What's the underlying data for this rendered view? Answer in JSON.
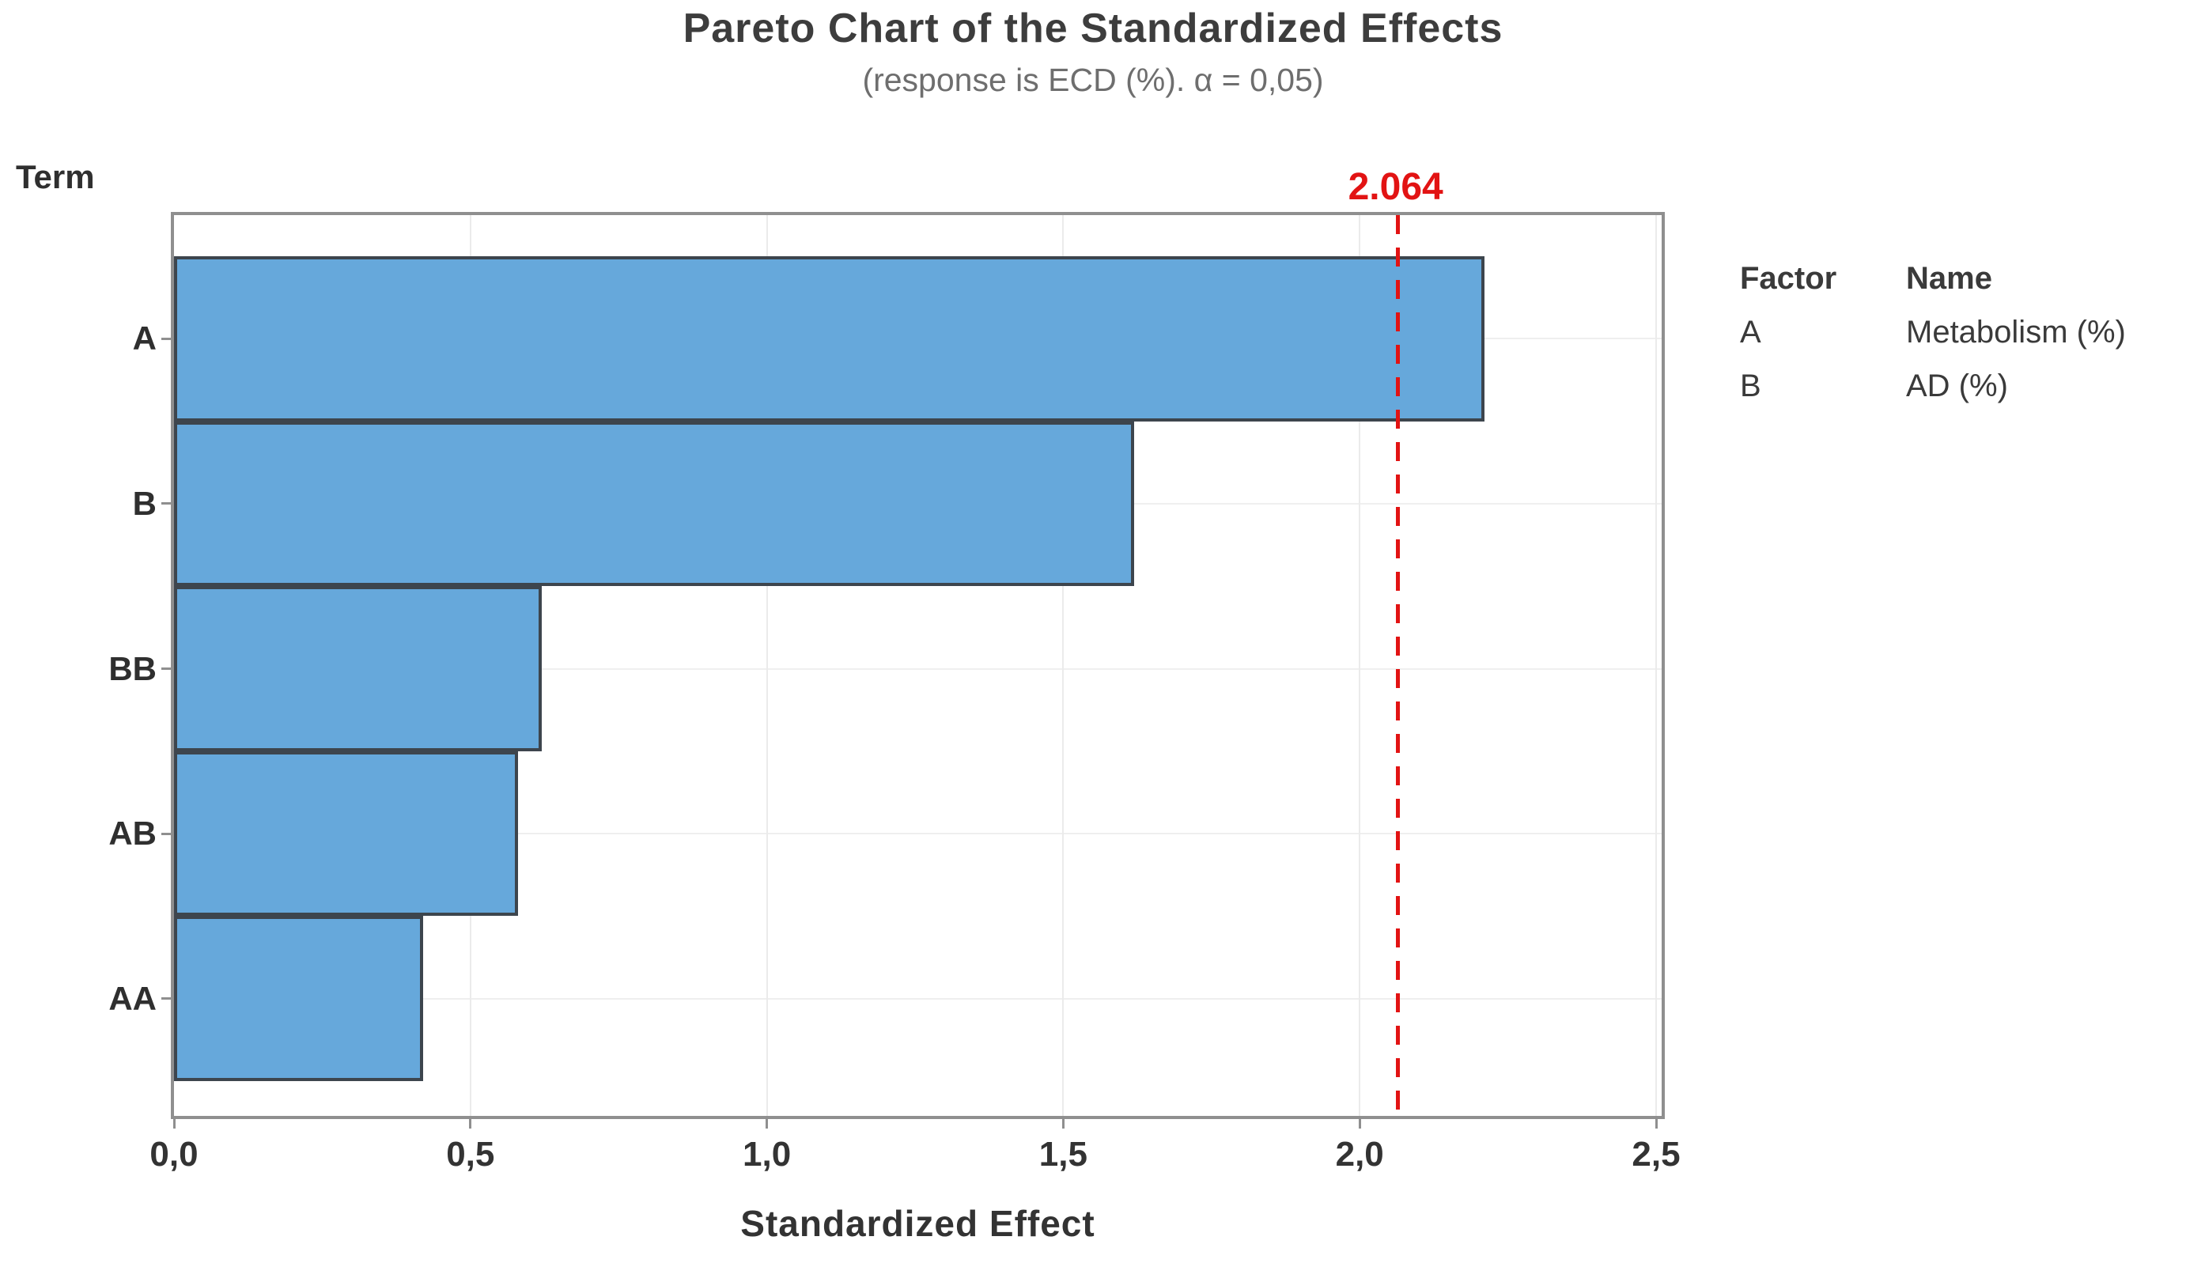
{
  "title": "Pareto Chart of the Standardized Effects",
  "subtitle": "(response is ECD (%). α = 0,05)",
  "y_axis_title": "Term",
  "x_axis_label": "Standardized Effect",
  "chart_data": {
    "type": "bar",
    "orientation": "horizontal",
    "title": "Pareto Chart of the Standardized Effects",
    "subtitle": "(response is ECD (%). α = 0,05)",
    "xlabel": "Standardized Effect",
    "ylabel": "Term",
    "categories": [
      "A",
      "B",
      "BB",
      "AB",
      "AA"
    ],
    "values": [
      2.21,
      1.62,
      0.62,
      0.58,
      0.42
    ],
    "xlim": [
      0,
      2.52
    ],
    "x_ticks": [
      {
        "value": 0.0,
        "label": "0,0"
      },
      {
        "value": 0.5,
        "label": "0,5"
      },
      {
        "value": 1.0,
        "label": "1,0"
      },
      {
        "value": 1.5,
        "label": "1,5"
      },
      {
        "value": 2.0,
        "label": "2,0"
      },
      {
        "value": 2.5,
        "label": "2,5"
      }
    ],
    "reference_line": {
      "value": 2.064,
      "label": "2.064",
      "color": "#e21313",
      "style": "dashed"
    },
    "grid": true,
    "legend_position": "right",
    "bar_color": "#66a8db",
    "bar_border_color": "#3d454d"
  },
  "legend": {
    "headers": {
      "factor": "Factor",
      "name": "Name"
    },
    "rows": [
      {
        "factor": "A",
        "name": "Metabolism (%)"
      },
      {
        "factor": "B",
        "name": "AD (%)"
      }
    ]
  },
  "colors": {
    "bar_fill": "#66a8db",
    "bar_border": "#3d454d",
    "frame": "#8f8f8f",
    "gridline": "#ebebeb",
    "reference_red": "#e21313",
    "title_text": "#3d3d3d",
    "subtitle_text": "#6e6e6e"
  }
}
